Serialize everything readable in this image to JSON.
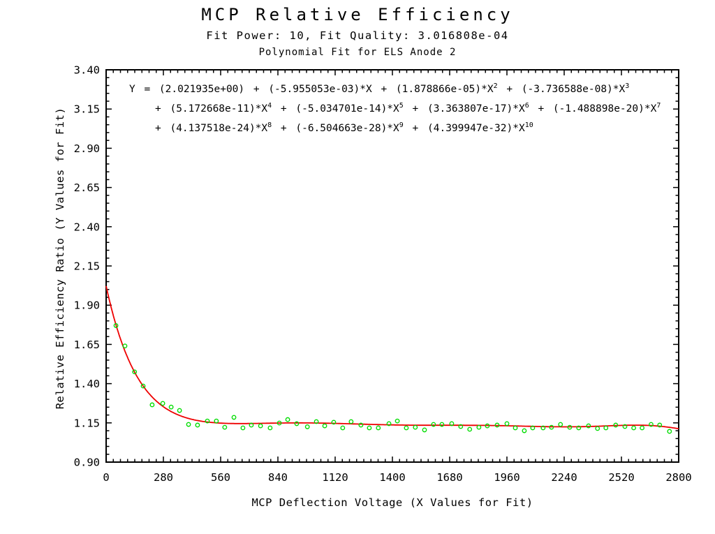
{
  "titles": {
    "main": "MCP Relative Efficiency",
    "fit_info": "Fit Power: 10, Fit Quality: 3.016808e-04",
    "plot_name": "Polynomial Fit for ELS Anode 2"
  },
  "equation": {
    "lines": [
      [
        {
          "t": "Y = (2.021935e+00) + (-5.955053e-03)*X + (1.878866e-05)*X"
        },
        {
          "s": "2"
        },
        {
          "t": " + (-3.736588e-08)*X"
        },
        {
          "s": "3"
        }
      ],
      [
        {
          "t": "+ (5.172668e-11)*X"
        },
        {
          "s": "4"
        },
        {
          "t": " + (-5.034701e-14)*X"
        },
        {
          "s": "5"
        },
        {
          "t": " + (3.363807e-17)*X"
        },
        {
          "s": "6"
        },
        {
          "t": " + (-1.488898e-20)*X"
        },
        {
          "s": "7"
        }
      ],
      [
        {
          "t": "+ (4.137518e-24)*X"
        },
        {
          "s": "8"
        },
        {
          "t": " + (-6.504663e-28)*X"
        },
        {
          "s": "9"
        },
        {
          "t": " + (4.399947e-32)*X"
        },
        {
          "s": "10"
        }
      ]
    ]
  },
  "chart_data": {
    "type": "scatter",
    "title": "MCP Relative Efficiency",
    "subtitle": "Fit Power: 10, Fit Quality: 3.016808e-04",
    "plot_name": "Polynomial Fit for ELS Anode 2",
    "xlabel": "MCP Deflection Voltage (X Values for Fit)",
    "ylabel": "Relative Efficiency Ratio (Y Values for Fit)",
    "xlim": [
      0,
      2800
    ],
    "ylim": [
      0.9,
      3.4
    ],
    "xticks": [
      0,
      280,
      560,
      840,
      1120,
      1400,
      1680,
      1960,
      2240,
      2520,
      2800
    ],
    "yticks": [
      0.9,
      1.15,
      1.4,
      1.65,
      1.9,
      2.15,
      2.4,
      2.65,
      2.9,
      3.15,
      3.4
    ],
    "x_minor_step": 35,
    "y_minor_step": 0.05,
    "grid": false,
    "frame_color": "#000000",
    "marker_color": "#00dd00",
    "fit_curve": {
      "kind": "polynomial",
      "power": 10,
      "quality": "3.016808e-04",
      "color": "#ee0000",
      "coefficients": [
        2.021935,
        -0.005955053,
        1.878866e-05,
        -3.736588e-08,
        5.172668e-11,
        -5.034701e-14,
        3.363807e-17,
        -1.488898e-20,
        4.137518e-24,
        -6.504663e-28,
        4.399947e-32
      ]
    },
    "points": [
      [
        48,
        1.77
      ],
      [
        92,
        1.64
      ],
      [
        139,
        1.475
      ],
      [
        181,
        1.385
      ],
      [
        225,
        1.265
      ],
      [
        277,
        1.274
      ],
      [
        318,
        1.251
      ],
      [
        359,
        1.229
      ],
      [
        403,
        1.14
      ],
      [
        447,
        1.136
      ],
      [
        495,
        1.162
      ],
      [
        539,
        1.162
      ],
      [
        580,
        1.122
      ],
      [
        625,
        1.185
      ],
      [
        669,
        1.118
      ],
      [
        710,
        1.136
      ],
      [
        755,
        1.131
      ],
      [
        802,
        1.118
      ],
      [
        847,
        1.149
      ],
      [
        888,
        1.171
      ],
      [
        932,
        1.145
      ],
      [
        984,
        1.125
      ],
      [
        1028,
        1.158
      ],
      [
        1069,
        1.131
      ],
      [
        1113,
        1.154
      ],
      [
        1157,
        1.118
      ],
      [
        1198,
        1.158
      ],
      [
        1246,
        1.136
      ],
      [
        1287,
        1.118
      ],
      [
        1331,
        1.118
      ],
      [
        1383,
        1.145
      ],
      [
        1424,
        1.162
      ],
      [
        1468,
        1.118
      ],
      [
        1512,
        1.122
      ],
      [
        1557,
        1.105
      ],
      [
        1601,
        1.14
      ],
      [
        1642,
        1.14
      ],
      [
        1690,
        1.145
      ],
      [
        1734,
        1.127
      ],
      [
        1778,
        1.109
      ],
      [
        1823,
        1.122
      ],
      [
        1864,
        1.131
      ],
      [
        1912,
        1.136
      ],
      [
        1960,
        1.145
      ],
      [
        2001,
        1.118
      ],
      [
        2045,
        1.1
      ],
      [
        2086,
        1.118
      ],
      [
        2137,
        1.118
      ],
      [
        2178,
        1.122
      ],
      [
        2222,
        1.14
      ],
      [
        2267,
        1.122
      ],
      [
        2311,
        1.118
      ],
      [
        2359,
        1.131
      ],
      [
        2403,
        1.114
      ],
      [
        2444,
        1.118
      ],
      [
        2492,
        1.136
      ],
      [
        2537,
        1.127
      ],
      [
        2580,
        1.118
      ],
      [
        2621,
        1.118
      ],
      [
        2665,
        1.14
      ],
      [
        2707,
        1.136
      ],
      [
        2755,
        1.096
      ]
    ]
  }
}
